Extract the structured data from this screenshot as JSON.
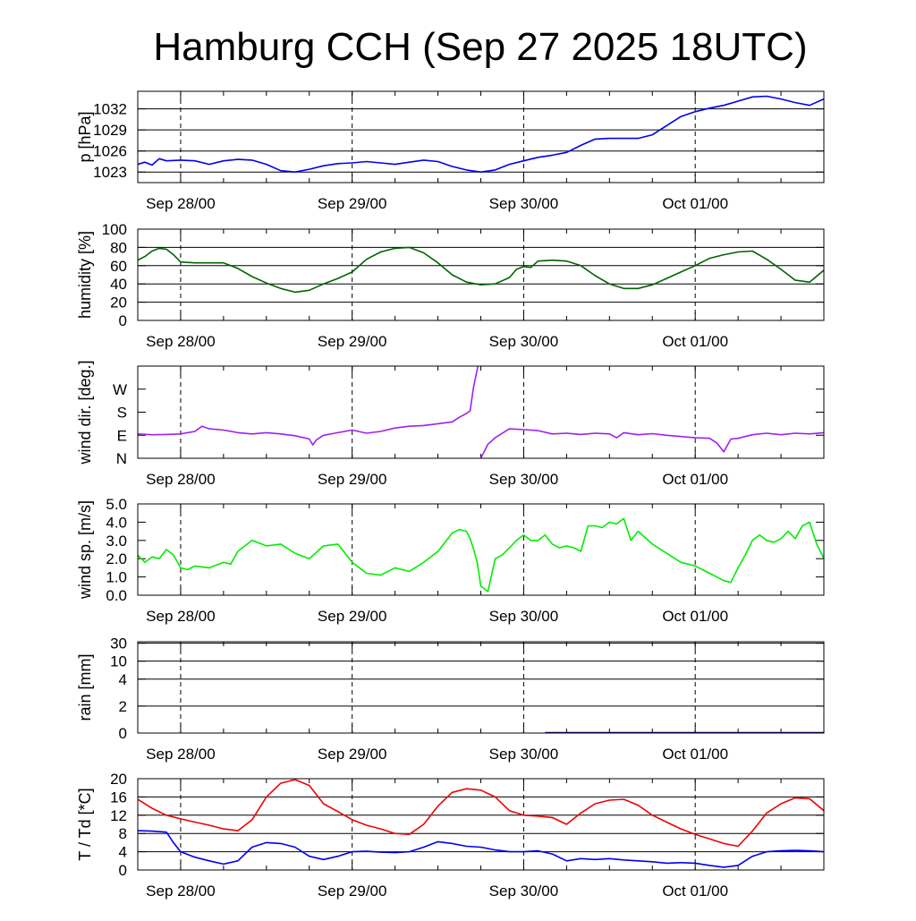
{
  "page": {
    "title": "Hamburg CCH (Sep 27 2025 18UTC)"
  },
  "colors": {
    "pressure": "#0000ee",
    "humidity": "#006400",
    "wind_dir": "#a020f0",
    "wind_speed": "#00ee00",
    "rain": "#00008b",
    "temperature": "#ee0000",
    "dewpoint": "#0000ee"
  },
  "chart_data": [
    {
      "type": "line",
      "id": "pressure",
      "ylabel": "p [hPa]",
      "xlim": [
        0,
        96
      ],
      "ylim": [
        1021.5,
        1034.5
      ],
      "yticks": [
        1023,
        1026,
        1029,
        1032
      ],
      "ytick_labels": [
        "1023",
        "1026",
        "1029",
        "1032"
      ],
      "grid_y": [
        1023,
        1026,
        1029,
        1032
      ],
      "xticks": [
        6,
        30,
        54,
        78
      ],
      "xtick_labels": [
        "Sep 28/00",
        "Sep 29/00",
        "Sep 30/00",
        "Oct 01/00"
      ],
      "series": [
        {
          "color_key": "pressure",
          "x": [
            0,
            1,
            2,
            3,
            4,
            6,
            8,
            10,
            12,
            14,
            16,
            18,
            20,
            22,
            24,
            26,
            28,
            30,
            32,
            34,
            36,
            38,
            40,
            42,
            44,
            46,
            48,
            50,
            52,
            54,
            56,
            58,
            60,
            62,
            64,
            66,
            68,
            70,
            72,
            74,
            76,
            78,
            80,
            82,
            84,
            86,
            88,
            90,
            92,
            94,
            96
          ],
          "y": [
            1024.1,
            1024.4,
            1024.0,
            1024.9,
            1024.6,
            1024.7,
            1024.6,
            1024.1,
            1024.6,
            1024.8,
            1024.7,
            1024.1,
            1023.2,
            1023.0,
            1023.4,
            1023.9,
            1024.2,
            1024.3,
            1024.5,
            1024.3,
            1024.1,
            1024.4,
            1024.7,
            1024.5,
            1023.8,
            1023.3,
            1023.0,
            1023.3,
            1024.1,
            1024.6,
            1025.1,
            1025.4,
            1025.8,
            1026.8,
            1027.7,
            1027.8,
            1027.8,
            1027.8,
            1028.3,
            1029.6,
            1030.9,
            1031.6,
            1032.1,
            1032.5,
            1033.1,
            1033.7,
            1033.8,
            1033.4,
            1032.9,
            1032.5,
            1033.4
          ]
        }
      ]
    },
    {
      "type": "line",
      "id": "humidity",
      "ylabel": "humidity [%]",
      "xlim": [
        0,
        96
      ],
      "ylim": [
        0,
        100
      ],
      "yticks": [
        0,
        20,
        40,
        60,
        80,
        100
      ],
      "ytick_labels": [
        "0",
        "20",
        "40",
        "60",
        "80",
        "100"
      ],
      "grid_y": [
        20,
        40,
        60,
        80
      ],
      "xticks": [
        6,
        30,
        54,
        78
      ],
      "xtick_labels": [
        "Sep 28/00",
        "Sep 29/00",
        "Sep 30/00",
        "Oct 01/00"
      ],
      "series": [
        {
          "color_key": "humidity",
          "x": [
            0,
            1,
            2,
            3,
            4,
            5,
            6,
            8,
            10,
            12,
            14,
            16,
            18,
            20,
            22,
            24,
            26,
            28,
            30,
            32,
            34,
            36,
            38,
            40,
            42,
            44,
            46,
            48,
            50,
            52,
            53,
            54,
            55,
            56,
            58,
            60,
            62,
            64,
            66,
            68,
            70,
            72,
            74,
            76,
            78,
            80,
            82,
            84,
            86,
            88,
            90,
            92,
            94,
            96
          ],
          "y": [
            66,
            70,
            76,
            79,
            78,
            72,
            64,
            63,
            63,
            63,
            57,
            48,
            41,
            35,
            31,
            33,
            40,
            46,
            53,
            67,
            75,
            79,
            80,
            74,
            63,
            50,
            42,
            39,
            40,
            47,
            56,
            59,
            58,
            65,
            66,
            65,
            60,
            49,
            40,
            35,
            35,
            39,
            46,
            53,
            60,
            68,
            72,
            75,
            76,
            67,
            56,
            44,
            42,
            55
          ]
        }
      ]
    },
    {
      "type": "line",
      "id": "wind_dir",
      "ylabel": "wind dir. [deg.]",
      "xlim": [
        0,
        96
      ],
      "ylim": [
        0,
        360
      ],
      "yticks": [
        0,
        90,
        180,
        270
      ],
      "ytick_labels": [
        "N",
        "E",
        "S",
        "W"
      ],
      "grid_y": [],
      "xticks": [
        6,
        30,
        54,
        78
      ],
      "xtick_labels": [
        "Sep 28/00",
        "Sep 29/00",
        "Sep 30/00",
        "Oct 01/00"
      ],
      "series": [
        {
          "color_key": "wind_dir",
          "x": [
            0,
            2,
            4,
            6,
            8,
            9,
            10,
            12,
            14,
            16,
            18,
            20,
            22,
            24,
            24.5,
            25,
            26,
            28,
            30,
            32,
            34,
            36,
            38,
            40,
            42,
            44,
            45,
            46,
            46.5,
            47,
            47.6
          ],
          "y": [
            95,
            92,
            93,
            95,
            105,
            125,
            115,
            110,
            100,
            95,
            100,
            95,
            88,
            75,
            52,
            72,
            90,
            100,
            110,
            98,
            105,
            118,
            125,
            128,
            135,
            142,
            160,
            175,
            185,
            280,
            360
          ]
        },
        {
          "color_key": "wind_dir",
          "x": [
            48,
            49,
            50,
            52,
            54,
            56,
            58,
            60,
            62,
            64,
            66,
            67,
            68,
            70,
            72,
            74,
            76,
            78,
            80,
            81,
            82,
            83,
            84,
            86,
            88,
            90,
            92,
            94,
            96
          ],
          "y": [
            0,
            55,
            80,
            115,
            112,
            108,
            95,
            98,
            93,
            98,
            95,
            80,
            100,
            92,
            96,
            90,
            85,
            80,
            78,
            60,
            25,
            75,
            78,
            92,
            98,
            92,
            98,
            95,
            100
          ]
        }
      ]
    },
    {
      "type": "line",
      "id": "wind_speed",
      "ylabel": "wind sp. [m/s]",
      "xlim": [
        0,
        96
      ],
      "ylim": [
        0,
        5
      ],
      "yticks": [
        0,
        1,
        2,
        3,
        4,
        5
      ],
      "ytick_labels": [
        "0.0",
        "1.0",
        "2.0",
        "3.0",
        "4.0",
        "5.0"
      ],
      "grid_y": [],
      "xticks": [
        6,
        30,
        54,
        78
      ],
      "xtick_labels": [
        "Sep 28/00",
        "Sep 29/00",
        "Sep 30/00",
        "Oct 01/00"
      ],
      "series": [
        {
          "color_key": "wind_speed",
          "x": [
            0,
            1,
            2,
            3,
            4,
            5,
            6,
            7,
            8,
            10,
            12,
            13,
            14,
            16,
            18,
            20,
            22,
            24,
            26,
            28,
            30,
            32,
            34,
            36,
            38,
            40,
            42,
            44,
            45,
            46,
            46.5,
            47,
            47.5,
            48,
            49,
            50,
            51,
            52,
            53,
            54,
            55,
            56,
            57,
            58,
            59,
            60,
            61,
            62,
            63,
            64,
            65,
            66,
            67,
            68,
            69,
            70,
            72,
            74,
            76,
            78,
            80,
            81,
            82,
            83,
            84,
            85,
            86,
            87,
            88,
            89,
            90,
            91,
            92,
            93,
            94,
            95,
            96
          ],
          "y": [
            2.2,
            1.8,
            2.1,
            2.0,
            2.5,
            2.2,
            1.5,
            1.4,
            1.6,
            1.5,
            1.8,
            1.7,
            2.4,
            3.0,
            2.7,
            2.8,
            2.3,
            2.0,
            2.7,
            2.8,
            1.8,
            1.2,
            1.1,
            1.5,
            1.3,
            1.8,
            2.4,
            3.4,
            3.6,
            3.5,
            3.1,
            2.5,
            1.8,
            0.5,
            0.2,
            2.0,
            2.2,
            2.6,
            3.0,
            3.3,
            3.0,
            3.0,
            3.3,
            2.8,
            2.6,
            2.7,
            2.6,
            2.4,
            3.8,
            3.8,
            3.7,
            4.0,
            3.9,
            4.2,
            3.0,
            3.5,
            2.8,
            2.3,
            1.8,
            1.6,
            1.2,
            1.0,
            0.8,
            0.7,
            1.5,
            2.2,
            3.0,
            3.3,
            3.0,
            2.9,
            3.1,
            3.5,
            3.1,
            3.8,
            4.0,
            2.8,
            2.0
          ]
        }
      ]
    },
    {
      "type": "line",
      "id": "rain",
      "ylabel": "rain [mm]",
      "xlim": [
        0,
        96
      ],
      "ylim": [
        0,
        30
      ],
      "yticks": [
        0,
        2,
        4,
        10,
        30
      ],
      "ytick_labels": [
        "0",
        "2",
        "4",
        "10",
        "30"
      ],
      "grid_y": [
        2,
        4,
        10,
        30
      ],
      "xticks": [
        6,
        30,
        54,
        78
      ],
      "xtick_labels": [
        "Sep 28/00",
        "Sep 29/00",
        "Sep 30/00",
        "Oct 01/00"
      ],
      "series": [
        {
          "color_key": "rain",
          "x": [
            57,
            96
          ],
          "y": [
            0,
            0
          ]
        }
      ]
    },
    {
      "type": "line",
      "id": "temperature",
      "ylabel": "T / Td [*C]",
      "xlim": [
        0,
        96
      ],
      "ylim": [
        0,
        20
      ],
      "yticks": [
        0,
        4,
        8,
        12,
        16,
        20
      ],
      "ytick_labels": [
        "0",
        "4",
        "8",
        "12",
        "16",
        "20"
      ],
      "grid_y": [
        4,
        8,
        12,
        16
      ],
      "xticks": [
        6,
        30,
        54,
        78
      ],
      "xtick_labels": [
        "Sep 28/00",
        "Sep 29/00",
        "Sep 30/00",
        "Oct 01/00"
      ],
      "series": [
        {
          "color_key": "temperature",
          "x": [
            0,
            2,
            4,
            6,
            8,
            10,
            12,
            14,
            16,
            18,
            20,
            22,
            24,
            26,
            28,
            30,
            32,
            34,
            36,
            38,
            40,
            42,
            44,
            46,
            48,
            50,
            52,
            54,
            56,
            58,
            60,
            62,
            64,
            66,
            68,
            70,
            72,
            74,
            76,
            78,
            80,
            82,
            84,
            86,
            88,
            90,
            92,
            94,
            96
          ],
          "y": [
            15.5,
            13.5,
            12.0,
            11.2,
            10.5,
            9.8,
            9.0,
            8.6,
            11.0,
            16.0,
            19.0,
            19.8,
            18.5,
            14.5,
            12.8,
            11.0,
            9.8,
            9.0,
            8.0,
            7.8,
            10.0,
            14.0,
            17.0,
            17.8,
            17.5,
            16.0,
            13.0,
            12.0,
            11.8,
            11.5,
            10.0,
            12.5,
            14.5,
            15.3,
            15.5,
            14.2,
            12.0,
            10.5,
            9.0,
            7.8,
            6.8,
            5.8,
            5.2,
            8.5,
            12.5,
            14.5,
            15.8,
            15.6,
            13.0
          ]
        },
        {
          "color_key": "dewpoint",
          "x": [
            0,
            2,
            4,
            5,
            6,
            8,
            10,
            12,
            14,
            16,
            18,
            20,
            22,
            24,
            26,
            28,
            30,
            32,
            34,
            36,
            38,
            40,
            42,
            44,
            46,
            48,
            50,
            52,
            54,
            56,
            58,
            60,
            62,
            64,
            66,
            68,
            70,
            72,
            74,
            76,
            78,
            80,
            82,
            84,
            86,
            88,
            90,
            92,
            94,
            96
          ],
          "y": [
            8.6,
            8.5,
            8.3,
            6.0,
            4.0,
            2.8,
            2.0,
            1.3,
            2.0,
            5.0,
            6.0,
            5.8,
            5.0,
            3.0,
            2.3,
            3.0,
            4.0,
            4.1,
            3.9,
            3.8,
            4.0,
            5.0,
            6.2,
            5.8,
            5.2,
            5.0,
            4.4,
            4.0,
            4.0,
            4.2,
            3.5,
            2.0,
            2.5,
            2.3,
            2.5,
            2.2,
            2.0,
            1.8,
            1.5,
            1.6,
            1.5,
            1.0,
            0.6,
            1.0,
            3.0,
            4.0,
            4.2,
            4.3,
            4.2,
            4.0
          ]
        }
      ]
    }
  ]
}
